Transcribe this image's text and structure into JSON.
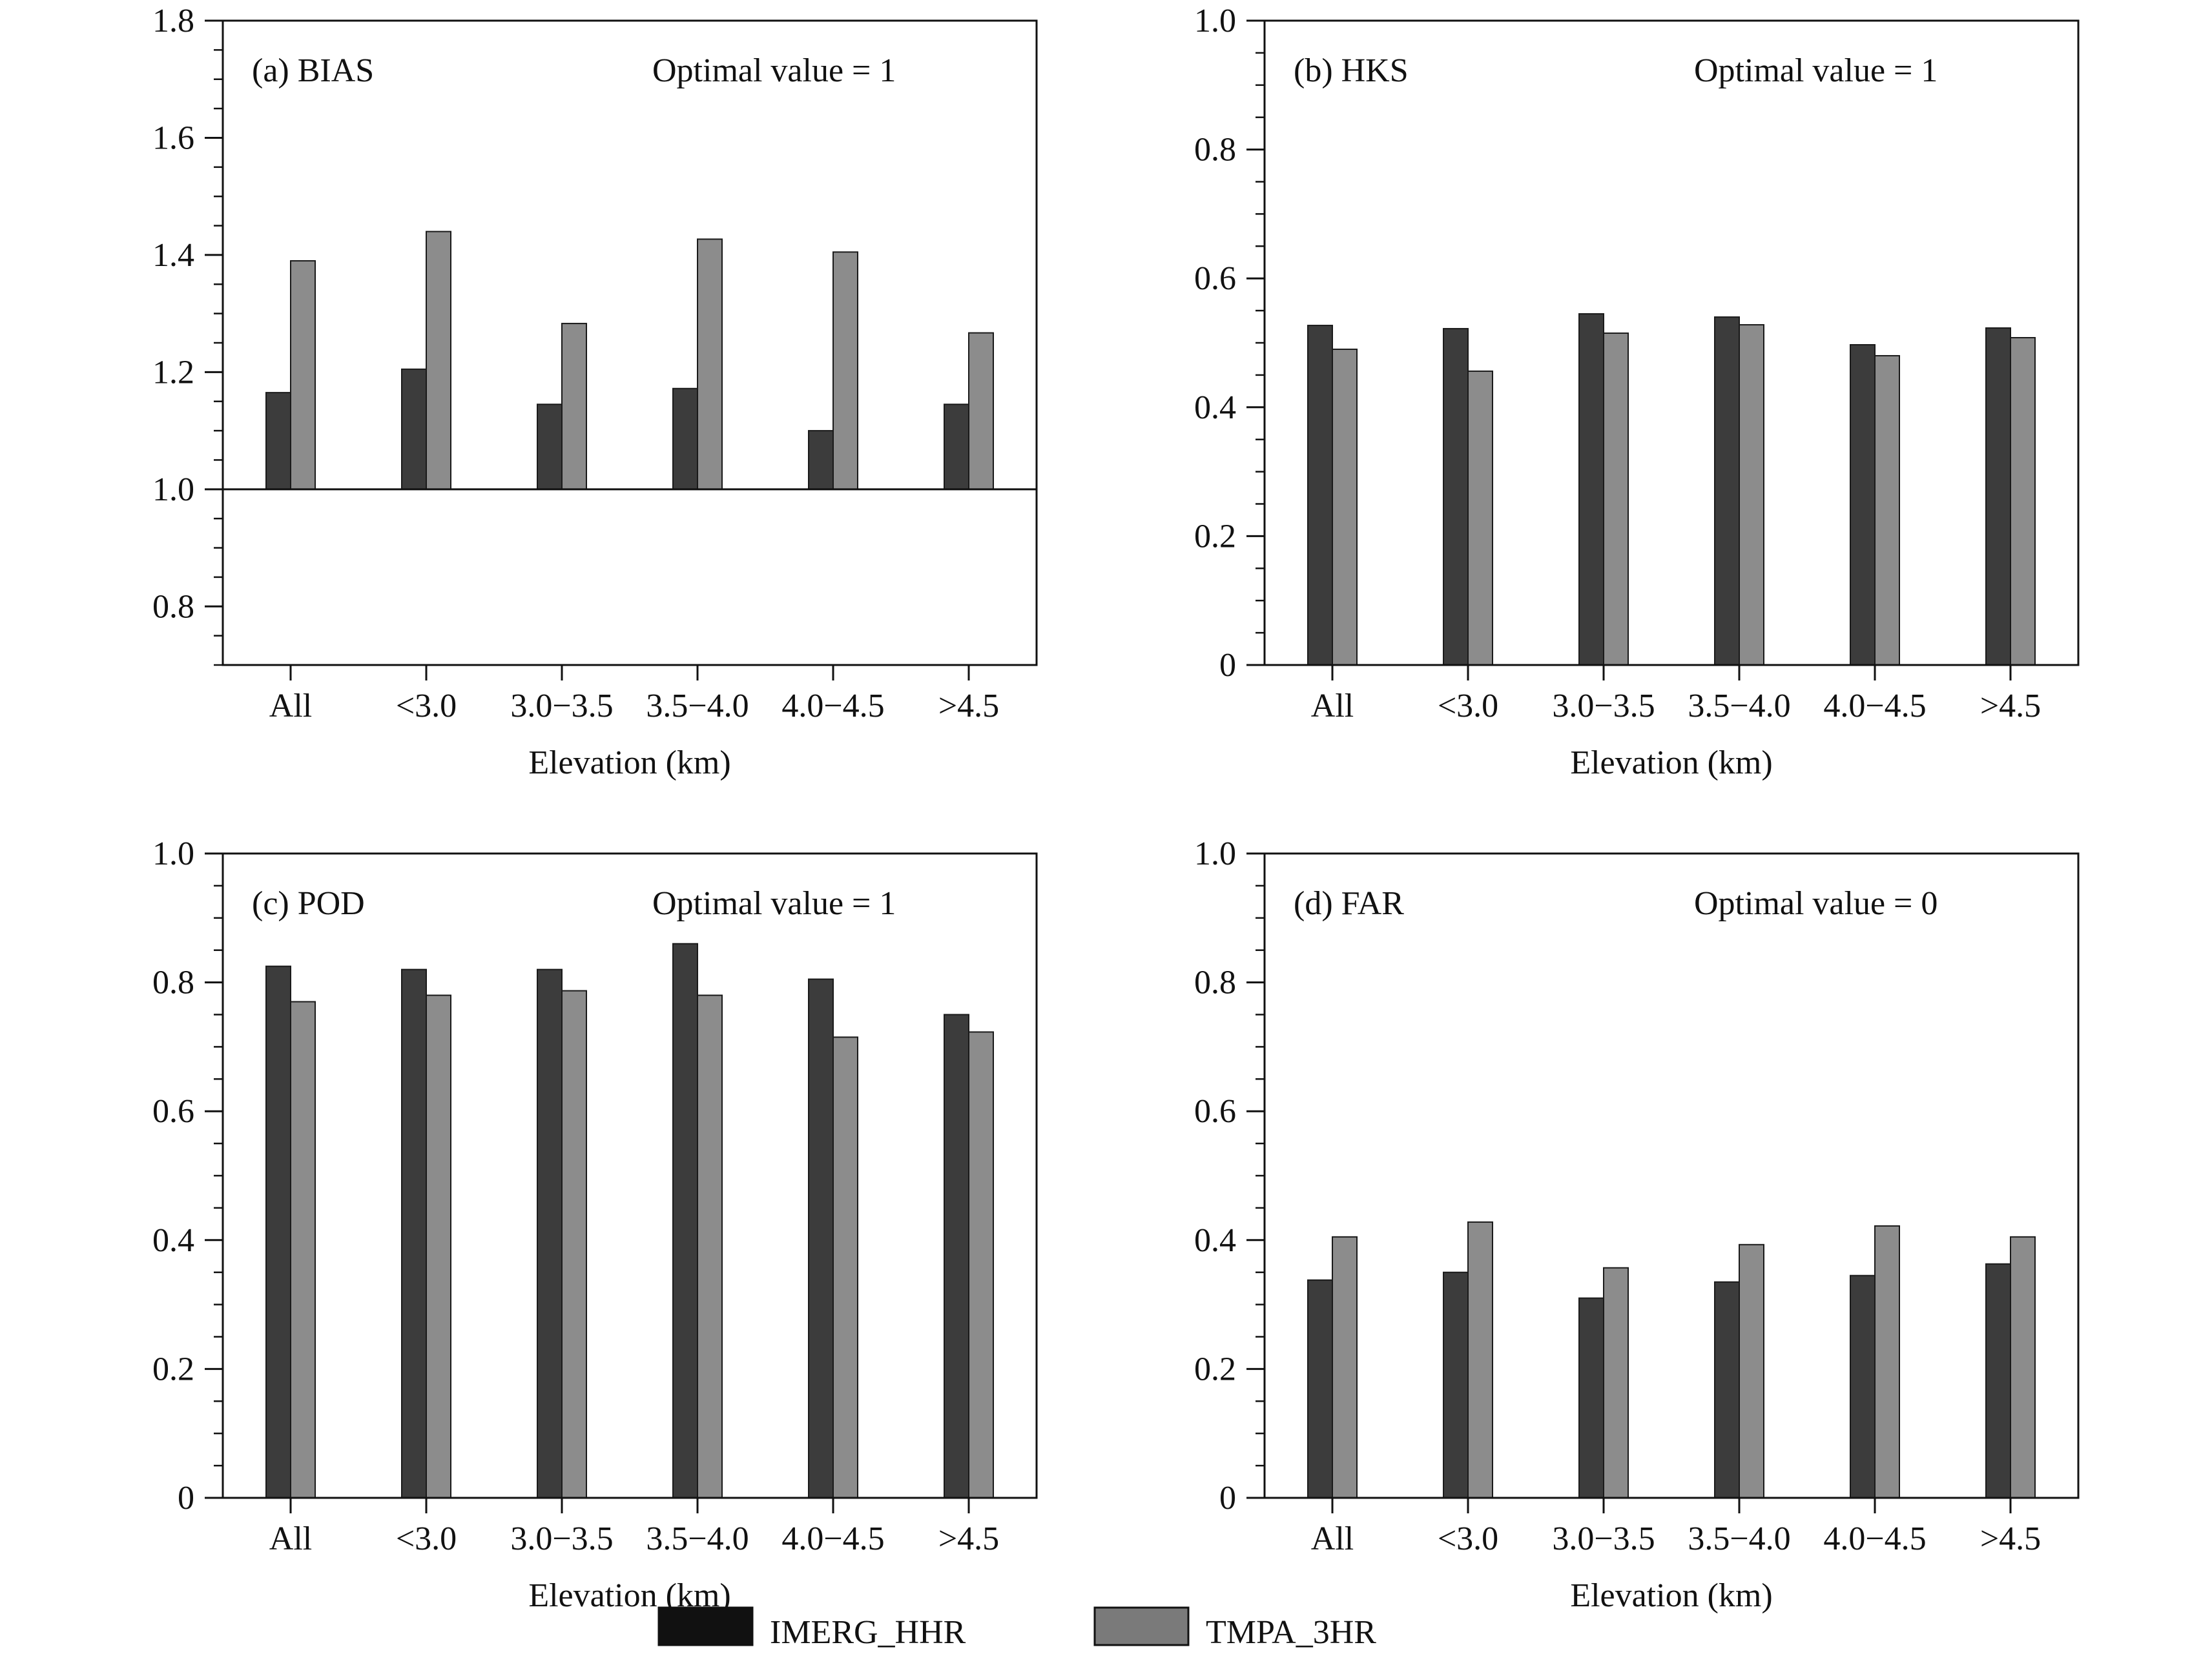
{
  "chart_data": [
    {
      "type": "bar",
      "panel_label": "(a) BIAS",
      "optimal_label": "Optimal value = 1",
      "categories": [
        "All",
        "<3.0",
        "3.0−3.5",
        "3.5−4.0",
        "4.0−4.5",
        ">4.5"
      ],
      "xlabel": "Elevation (km)",
      "ylim": [
        0.7,
        1.8
      ],
      "baseline": 1.0,
      "yticks": [
        0.8,
        1.0,
        1.2,
        1.4,
        1.6,
        1.8
      ],
      "ytick_labels": [
        "0.8",
        "1.0",
        "1.2",
        "1.4",
        "1.6",
        "1.8"
      ],
      "series": [
        {
          "name": "IMERG_HHR",
          "values": [
            1.165,
            1.205,
            1.145,
            1.172,
            1.1,
            1.145
          ]
        },
        {
          "name": "TMPA_3HR",
          "values": [
            1.39,
            1.44,
            1.283,
            1.427,
            1.405,
            1.267
          ]
        }
      ]
    },
    {
      "type": "bar",
      "panel_label": "(b) HKS",
      "optimal_label": "Optimal value = 1",
      "categories": [
        "All",
        "<3.0",
        "3.0−3.5",
        "3.5−4.0",
        "4.0−4.5",
        ">4.5"
      ],
      "xlabel": "Elevation (km)",
      "ylim": [
        0,
        1.0
      ],
      "baseline": 0,
      "yticks": [
        0,
        0.2,
        0.4,
        0.6,
        0.8,
        1.0
      ],
      "ytick_labels": [
        "0",
        "0.2",
        "0.4",
        "0.6",
        "0.8",
        "1.0"
      ],
      "series": [
        {
          "name": "IMERG_HHR",
          "values": [
            0.527,
            0.522,
            0.545,
            0.54,
            0.497,
            0.523
          ]
        },
        {
          "name": "TMPA_3HR",
          "values": [
            0.49,
            0.456,
            0.515,
            0.528,
            0.48,
            0.508
          ]
        }
      ]
    },
    {
      "type": "bar",
      "panel_label": "(c) POD",
      "optimal_label": "Optimal value = 1",
      "categories": [
        "All",
        "<3.0",
        "3.0−3.5",
        "3.5−4.0",
        "4.0−4.5",
        ">4.5"
      ],
      "xlabel": "Elevation (km)",
      "ylim": [
        0,
        1.0
      ],
      "baseline": 0,
      "yticks": [
        0,
        0.2,
        0.4,
        0.6,
        0.8,
        1.0
      ],
      "ytick_labels": [
        "0",
        "0.2",
        "0.4",
        "0.6",
        "0.8",
        "1.0"
      ],
      "series": [
        {
          "name": "IMERG_HHR",
          "values": [
            0.825,
            0.82,
            0.82,
            0.86,
            0.805,
            0.75
          ]
        },
        {
          "name": "TMPA_3HR",
          "values": [
            0.77,
            0.78,
            0.787,
            0.78,
            0.715,
            0.723
          ]
        }
      ]
    },
    {
      "type": "bar",
      "panel_label": "(d) FAR",
      "optimal_label": "Optimal value = 0",
      "categories": [
        "All",
        "<3.0",
        "3.0−3.5",
        "3.5−4.0",
        "4.0−4.5",
        ">4.5"
      ],
      "xlabel": "Elevation (km)",
      "ylim": [
        0,
        1.0
      ],
      "baseline": 0,
      "yticks": [
        0,
        0.2,
        0.4,
        0.6,
        0.8,
        1.0
      ],
      "ytick_labels": [
        "0",
        "0.2",
        "0.4",
        "0.6",
        "0.8",
        "1.0"
      ],
      "series": [
        {
          "name": "IMERG_HHR",
          "values": [
            0.338,
            0.35,
            0.31,
            0.335,
            0.345,
            0.363
          ]
        },
        {
          "name": "TMPA_3HR",
          "values": [
            0.405,
            0.428,
            0.357,
            0.393,
            0.422,
            0.405
          ]
        }
      ]
    }
  ],
  "legend": {
    "items": [
      {
        "label": "IMERG_HHR",
        "color": "#111111"
      },
      {
        "label": "TMPA_3HR",
        "color": "#7a7a7a"
      }
    ]
  },
  "colors": {
    "imerg_fill": "#3c3c3c",
    "tmpa_fill": "#8c8c8c",
    "bar_stroke": "#1a1a1a",
    "axis": "#111111"
  }
}
